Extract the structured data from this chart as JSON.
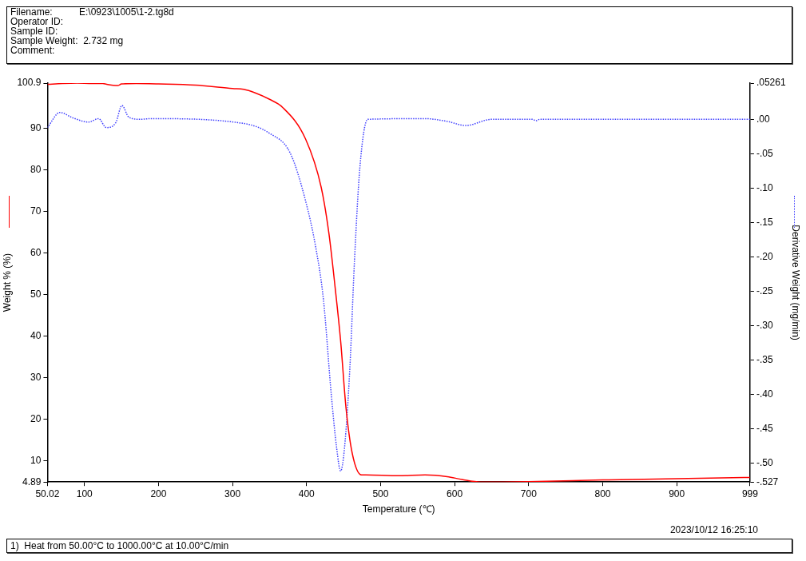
{
  "chart_data": {
    "type": "line",
    "xlabel": "Temperature (℃)",
    "ylabel": "Weight % (%)",
    "y2label": "Derivative Weight (mg/min)",
    "xlim": [
      50.02,
      999
    ],
    "xticks": [
      50.02,
      100,
      200,
      300,
      400,
      500,
      600,
      700,
      800,
      900,
      999
    ],
    "ylim": [
      4.89,
      100.9
    ],
    "yticks": [
      4.89,
      10,
      20,
      30,
      40,
      50,
      60,
      70,
      80,
      90,
      100.9
    ],
    "y2lim": [
      -0.527,
      0.05261
    ],
    "y2ticks": [
      {
        "value": 0.05261,
        "label": ".05261"
      },
      {
        "value": 0,
        "label": ".00"
      },
      {
        "value": -0.05,
        "label": "-.05"
      },
      {
        "value": -0.1,
        "label": "-.10"
      },
      {
        "value": -0.15,
        "label": "-.15"
      },
      {
        "value": -0.2,
        "label": "-.20"
      },
      {
        "value": -0.25,
        "label": "-.25"
      },
      {
        "value": -0.3,
        "label": "-.30"
      },
      {
        "value": -0.35,
        "label": "-.35"
      },
      {
        "value": -0.4,
        "label": "-.40"
      },
      {
        "value": -0.45,
        "label": "-.45"
      },
      {
        "value": -0.5,
        "label": "-.50"
      },
      {
        "value": -0.527,
        "label": "-.527"
      }
    ],
    "legend": false,
    "marker": "none",
    "series": [
      {
        "color": "#ff0000",
        "line_style": "solid",
        "x": [
          50.02,
          70,
          90,
          110,
          125,
          130,
          145,
          150,
          170,
          200,
          250,
          300,
          315,
          330,
          350,
          367.4,
          398.8,
          419.8,
          430.2,
          438.6,
          446,
          453.3,
          461.7,
          474.2,
          480,
          524.5,
          560,
          590,
          610,
          635,
          700,
          800,
          900,
          999
        ],
        "values": [
          100.6,
          100.8,
          100.9,
          100.8,
          100.8,
          100.6,
          100.3,
          100.7,
          100.8,
          100.7,
          100.4,
          99.6,
          99.4,
          98.6,
          97.0,
          95.1,
          87.4,
          75.8,
          64.7,
          51.7,
          38.9,
          22.7,
          11.8,
          6.6,
          6.6,
          6.4,
          6.6,
          6.2,
          5.5,
          4.89,
          5.0,
          5.4,
          5.7,
          6.0
        ]
      },
      {
        "color": "#4040ff",
        "line_style": "dotted",
        "axis": "y2",
        "x": [
          50.02,
          66.8,
          84.6,
          105.5,
          119.1,
          129.6,
          142.2,
          150.6,
          160,
          175.7,
          189.3,
          315,
          349.6,
          377.9,
          398.8,
          412.4,
          422.9,
          433.4,
          440.7,
          446,
          451.2,
          458.5,
          464.8,
          472.1,
          482.6,
          560,
          590,
          615,
          650,
          705,
          710,
          715,
          999
        ],
        "values": [
          -0.012,
          0.01,
          0.002,
          -0.004,
          0.001,
          -0.012,
          -0.005,
          0.02,
          0.003,
          0,
          0.001,
          -0.006,
          -0.02,
          -0.049,
          -0.119,
          -0.186,
          -0.263,
          -0.4,
          -0.478,
          -0.511,
          -0.478,
          -0.361,
          -0.204,
          -0.069,
          0,
          0.001,
          -0.003,
          -0.009,
          0,
          0,
          -0.002,
          0,
          0
        ]
      }
    ],
    "annotations": [
      "Filename:          E:\\0923\\1005\\1-2.tg8d",
      "Operator ID:",
      "Sample ID:",
      "Sample Weight:  2.732 mg",
      "Comment:",
      "2023/10/12 16:25:10",
      "1)  Heat from 50.00°C to 1000.00°C at 10.00°C/min"
    ]
  }
}
